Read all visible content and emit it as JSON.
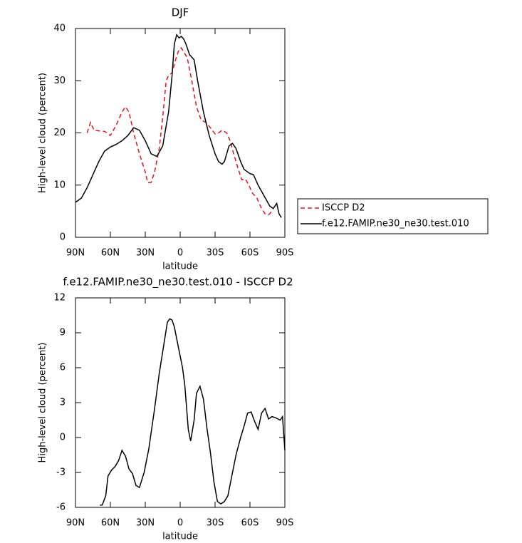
{
  "chart_data": [
    {
      "type": "line",
      "title": "DJF",
      "xlabel": "latitude",
      "ylabel": "High-level cloud (percent)",
      "xlim": [
        90,
        -90
      ],
      "ylim": [
        0,
        40
      ],
      "xticks": [
        {
          "value": 90,
          "label": "90N"
        },
        {
          "value": 60,
          "label": "60N"
        },
        {
          "value": 30,
          "label": "30N"
        },
        0,
        {
          "value": -30,
          "label": "30S"
        },
        {
          "value": -60,
          "label": "60S"
        },
        {
          "value": -90,
          "label": "90S"
        }
      ],
      "yticks": [
        0,
        10,
        20,
        30,
        40
      ],
      "legend": "outside-right",
      "series": [
        {
          "name": "ISCCP D2",
          "color": "#e8141c",
          "dash": true,
          "x": [
            80,
            77,
            74,
            70,
            65,
            60,
            55,
            50,
            47,
            44,
            40,
            35,
            30,
            28,
            25,
            22,
            18,
            15,
            12,
            10,
            7,
            4,
            1,
            -1,
            -3,
            -6,
            -10,
            -14,
            -18,
            -22,
            -26,
            -30,
            -33,
            -36,
            -40,
            -43,
            -46,
            -50,
            -53,
            -56,
            -59,
            -62,
            -66,
            -70,
            -73,
            -76,
            -79
          ],
          "values": [
            20,
            22,
            20.5,
            20.4,
            20.3,
            19.5,
            21.5,
            24,
            25,
            24,
            20,
            16,
            12.5,
            10.5,
            10.5,
            12.5,
            17,
            23,
            30,
            31,
            31.5,
            34,
            36,
            36.3,
            35.5,
            34.5,
            30,
            25,
            22.5,
            22,
            21,
            19.8,
            20,
            20.5,
            20,
            18.5,
            16,
            13,
            11,
            11.2,
            10,
            8.5,
            7.5,
            5.5,
            4.5,
            4.3,
            5
          ]
        },
        {
          "name": "f.e12.FAMIP.ne30_ne30.test.010",
          "color": "#000000",
          "dash": false,
          "x": [
            90,
            85,
            80,
            75,
            70,
            65,
            60,
            55,
            50,
            45,
            40,
            35,
            30,
            25,
            20,
            15,
            10,
            7,
            5,
            3,
            1,
            -1,
            -3,
            -5,
            -8,
            -12,
            -15,
            -20,
            -25,
            -30,
            -33,
            -36,
            -38,
            -42,
            -45,
            -48,
            -52,
            -55,
            -60,
            -63,
            -67,
            -72,
            -77,
            -80,
            -83,
            -85,
            -87
          ],
          "values": [
            6.7,
            7.5,
            9.5,
            12,
            14.5,
            16.5,
            17.3,
            17.8,
            18.5,
            19.5,
            21,
            20.5,
            18.5,
            16,
            15.5,
            17.5,
            24,
            31,
            37,
            38.8,
            38.2,
            38.5,
            38,
            37,
            35,
            34,
            30,
            24,
            19.5,
            16,
            14.5,
            14,
            14.5,
            17.5,
            18,
            17,
            14.5,
            13,
            12.2,
            12,
            10,
            8,
            6,
            5.5,
            6.5,
            4.5,
            3.8
          ]
        }
      ]
    },
    {
      "type": "line",
      "title": "f.e12.FAMIP.ne30_ne30.test.010 - ISCCP D2",
      "xlabel": "latitude",
      "ylabel": "High-level cloud (percent)",
      "xlim": [
        90,
        -90
      ],
      "ylim": [
        -6,
        12
      ],
      "xticks": [
        {
          "value": 90,
          "label": "90N"
        },
        {
          "value": 60,
          "label": "60N"
        },
        {
          "value": 30,
          "label": "30N"
        },
        0,
        {
          "value": -30,
          "label": "30S"
        },
        {
          "value": -60,
          "label": "60S"
        },
        {
          "value": -90,
          "label": "90S"
        }
      ],
      "yticks": [
        -6,
        -3,
        0,
        3,
        6,
        9,
        12
      ],
      "series": [
        {
          "color": "#000000",
          "dash": false,
          "x": [
            69,
            67,
            64,
            62,
            59,
            56,
            53,
            50,
            47,
            44,
            41,
            38,
            35,
            31,
            27,
            22,
            18,
            14,
            11,
            9,
            7,
            5,
            2,
            -2,
            -4,
            -7,
            -9,
            -12,
            -14,
            -17,
            -20,
            -23,
            -26,
            -29,
            -32,
            -35,
            -38,
            -41,
            -45,
            -48,
            -52,
            -55,
            -58,
            -61,
            -64,
            -67,
            -70,
            -73,
            -76,
            -79,
            -82,
            -86,
            -88,
            -90
          ],
          "values": [
            -5.8,
            -5.8,
            -5,
            -3.3,
            -2.8,
            -2.5,
            -2,
            -1.1,
            -1.6,
            -2.7,
            -3.1,
            -4.1,
            -4.3,
            -3,
            -1,
            2.5,
            5.5,
            8,
            9.9,
            10.2,
            10.1,
            9.5,
            8,
            6,
            4.5,
            0.7,
            -0.3,
            1.5,
            3.8,
            4.4,
            3.3,
            0.8,
            -1.3,
            -3.8,
            -5.5,
            -5.7,
            -5.5,
            -5,
            -3,
            -1.5,
            0,
            1,
            2.1,
            2.2,
            1.4,
            0.7,
            2.1,
            2.5,
            1.6,
            1.8,
            1.7,
            1.5,
            1.8,
            -1.1
          ]
        }
      ]
    }
  ]
}
